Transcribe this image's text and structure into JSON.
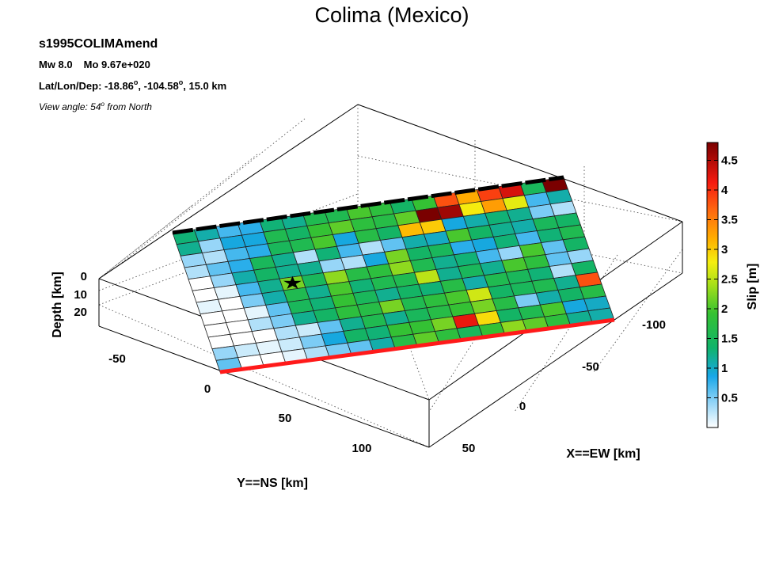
{
  "header": {
    "title": "Colima (Mexico)",
    "event_id": "s1995COLIMAmend",
    "magnitude": "Mw 8.0",
    "moment": "Mo 9.67e+020",
    "location_prefix": "Lat/Lon/Dep: -18.86",
    "lon_text": ", -104.58",
    "depth_text": ", 15.0 km",
    "degree_symbol": "o",
    "view_prefix": "View angle:  54",
    "view_suffix": " from North"
  },
  "chart_data": {
    "type": "heatmap",
    "rows": 12,
    "cols": 18,
    "slip_grid": [
      [
        1.3,
        1.1,
        0.7,
        0.8,
        1.3,
        1.2,
        1.6,
        1.6,
        2.0,
        1.8,
        1.4,
        1.9,
        3.8,
        3.2,
        3.9,
        4.3,
        1.5,
        4.8
      ],
      [
        1.2,
        0.4,
        0.9,
        0.9,
        1.6,
        1.4,
        1.9,
        2.1,
        1.8,
        1.7,
        2.1,
        4.8,
        4.6,
        2.8,
        3.3,
        2.7,
        0.7,
        1.1
      ],
      [
        0.4,
        0.3,
        0.7,
        0.8,
        1.5,
        1.6,
        2.0,
        0.9,
        1.7,
        1.4,
        3.1,
        3.0,
        0.9,
        1.1,
        1.3,
        1.2,
        0.5,
        0.3
      ],
      [
        0.3,
        0.6,
        0.8,
        1.5,
        1.2,
        0.3,
        1.3,
        0.7,
        0.3,
        0.6,
        1.1,
        1.0,
        2.0,
        1.4,
        1.2,
        1.1,
        1.5,
        1.4
      ],
      [
        0.0,
        0.4,
        1.1,
        1.4,
        1.2,
        1.2,
        0.4,
        0.3,
        0.9,
        2.2,
        1.4,
        1.5,
        0.8,
        0.9,
        1.3,
        0.7,
        1.3,
        1.6
      ],
      [
        0.0,
        0.1,
        0.7,
        1.2,
        2.2,
        1.5,
        2.3,
        1.7,
        1.8,
        2.3,
        1.6,
        1.2,
        1.3,
        0.7,
        0.4,
        2.0,
        0.6,
        1.4
      ],
      [
        0.1,
        0.0,
        0.5,
        1.1,
        1.6,
        1.2,
        2.0,
        1.3,
        1.6,
        1.6,
        2.5,
        1.2,
        1.5,
        1.2,
        2.0,
        1.8,
        0.6,
        0.4
      ],
      [
        0.0,
        0.0,
        0.1,
        0.6,
        1.5,
        1.3,
        1.9,
        1.5,
        1.2,
        1.4,
        1.3,
        1.7,
        1.1,
        1.6,
        1.5,
        1.3,
        0.3,
        1.4
      ],
      [
        0.0,
        0.0,
        0.3,
        0.5,
        1.2,
        1.4,
        1.8,
        1.7,
        2.2,
        1.6,
        1.8,
        2.0,
        2.6,
        1.4,
        1.5,
        1.6,
        1.2,
        3.8
      ],
      [
        0.0,
        0.0,
        0.0,
        0.3,
        0.2,
        0.6,
        1.2,
        1.6,
        1.2,
        1.5,
        1.7,
        1.9,
        2.2,
        1.7,
        0.5,
        1.1,
        1.4,
        1.7
      ],
      [
        0.4,
        0.2,
        0.1,
        0.2,
        0.5,
        0.9,
        1.4,
        1.3,
        1.9,
        1.9,
        2.2,
        4.2,
        2.9,
        1.4,
        1.6,
        2.0,
        0.9,
        1.0
      ],
      [
        0.6,
        0.0,
        0.0,
        0.1,
        0.3,
        0.5,
        0.6,
        1.1,
        1.7,
        2.1,
        1.8,
        1.5,
        1.9,
        2.3,
        2.1,
        1.8,
        1.2,
        1.1
      ]
    ],
    "color_range": [
      0,
      4.8
    ],
    "hypocenter": {
      "row": 5,
      "col": 4
    },
    "axes": {
      "x_label": "X==EW [km]",
      "y_label": "Y==NS [km]",
      "z_label": "Depth [km]",
      "x_ticks": [
        "-100",
        "-50",
        "0",
        "50"
      ],
      "y_ticks": [
        "-50",
        "0",
        "50",
        "100"
      ],
      "z_ticks": [
        "0",
        "10",
        "20"
      ]
    },
    "colorbar": {
      "label": "Slip [m]",
      "ticks": [
        "0.5",
        "1",
        "1.5",
        "2",
        "2.5",
        "3",
        "3.5",
        "4",
        "4.5"
      ],
      "tick_values": [
        0.5,
        1,
        1.5,
        2,
        2.5,
        3,
        3.5,
        4,
        4.5
      ],
      "placement": "right"
    }
  }
}
